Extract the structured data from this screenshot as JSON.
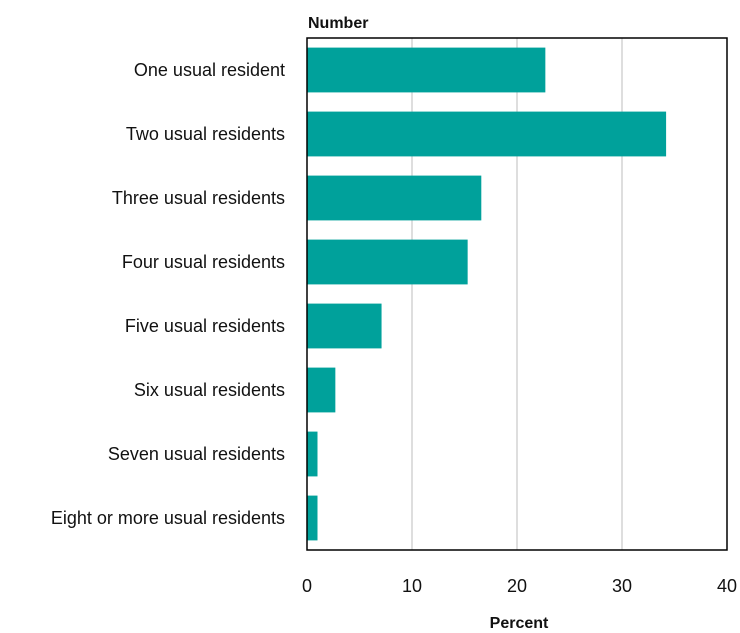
{
  "chart_data": {
    "type": "bar",
    "orientation": "horizontal",
    "title": "Number",
    "xlabel": "Percent",
    "ylabel": "",
    "xlim": [
      0,
      40
    ],
    "xticks": [
      0,
      10,
      20,
      30,
      40
    ],
    "grid": true,
    "legend": "none",
    "bar_color": "#00a19b",
    "grid_color": "#bdbdbd",
    "categories": [
      "One usual resident",
      "Two usual residents",
      "Three usual residents",
      "Four usual residents",
      "Five usual residents",
      "Six usual residents",
      "Seven usual residents",
      "Eight or more usual residents"
    ],
    "values": [
      22.7,
      34.2,
      16.6,
      15.3,
      7.1,
      2.7,
      1.0,
      1.0
    ]
  }
}
